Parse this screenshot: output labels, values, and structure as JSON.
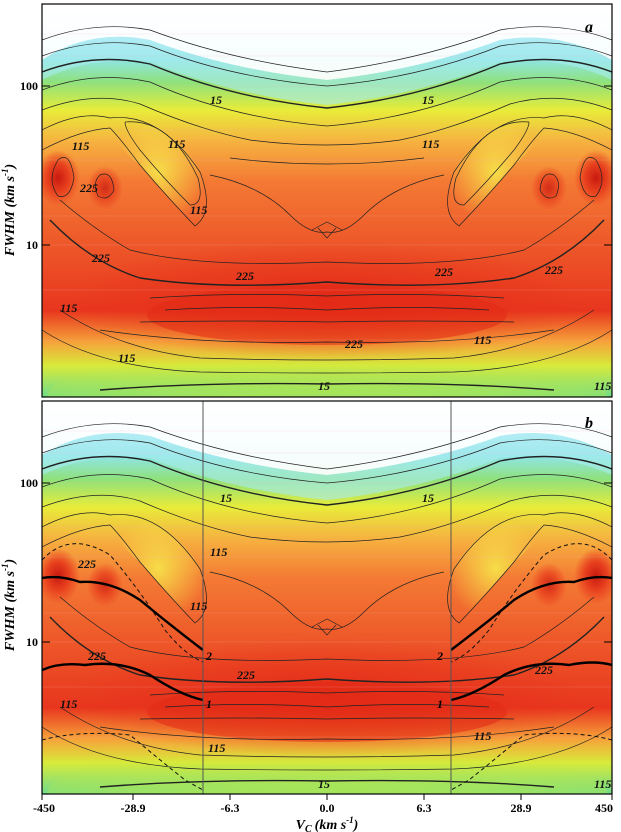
{
  "chart_data": [
    {
      "panel": "a",
      "type": "heatmap",
      "xlabel": "V_C (km s^-1)",
      "ylabel": "FWHM (km s^-1)",
      "x_tick_labels": [
        "-450",
        "-28.9",
        "-6.3",
        "0.0",
        "6.3",
        "28.9",
        "450"
      ],
      "y_tick_labels": [
        "10",
        "100"
      ],
      "y_scale": "log",
      "contour_labels": [
        "15",
        "15",
        "115",
        "115",
        "115",
        "115",
        "225",
        "225",
        "225",
        "225",
        "225",
        "225",
        "115",
        "115",
        "15",
        "115",
        "115"
      ],
      "colormap": [
        "#e8f6ff",
        "#9fe3f0",
        "#8de07a",
        "#f4ec3a",
        "#f6a23a",
        "#f0582a",
        "#e8301e"
      ]
    },
    {
      "panel": "b",
      "type": "heatmap",
      "xlabel": "V_C (km s^-1)",
      "ylabel": "FWHM (km s^-1)",
      "x_tick_labels": [
        "-450",
        "-28.9",
        "-6.3",
        "0.0",
        "6.3",
        "28.9",
        "450"
      ],
      "y_tick_labels": [
        "10",
        "100"
      ],
      "y_scale": "log",
      "contour_labels": [
        "15",
        "15",
        "115",
        "115",
        "225",
        "225",
        "225",
        "225",
        "115",
        "115",
        "15",
        "115",
        "115"
      ],
      "curve_labels": [
        "1",
        "2",
        "1",
        "2"
      ],
      "vertical_lines": [
        "-6.3",
        "6.3"
      ]
    }
  ],
  "axis_label_x": "V",
  "axis_label_x_sub": "C",
  "axis_label_x_units": "(km s",
  "axis_label_x_exp": "-1",
  "axis_label_y": "FWHM (km s",
  "axis_label_y_exp": "-1"
}
